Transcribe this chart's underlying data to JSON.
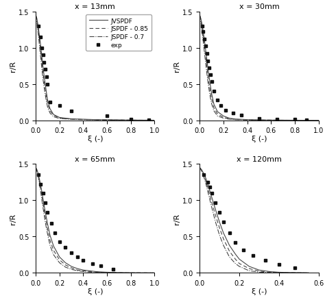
{
  "panels": [
    {
      "title": "x = 13mm",
      "xlim": [
        0,
        1.0
      ],
      "ylim": [
        0,
        1.5
      ]
    },
    {
      "title": "x = 30mm",
      "xlim": [
        0,
        1.0
      ],
      "ylim": [
        0,
        1.5
      ]
    },
    {
      "title": "x = 65mm",
      "xlim": [
        0,
        1.0
      ],
      "ylim": [
        0,
        1.5
      ]
    },
    {
      "title": "x = 120mm",
      "xlim": [
        0,
        0.6
      ],
      "ylim": [
        0,
        1.5
      ]
    }
  ],
  "legend_labels": [
    "JVSPDF",
    "JSPDF - 0.85",
    "JSPDF - 0.7",
    "exp"
  ],
  "line_color": "#444444",
  "marker_color": "#111111",
  "xlabel": "ξ (-)",
  "ylabel": "r/R",
  "curves": {
    "panel0": {
      "jvspdf_xi": [
        0.0,
        0.01,
        0.02,
        0.03,
        0.04,
        0.05,
        0.06,
        0.07,
        0.08,
        0.09,
        0.1,
        0.12,
        0.15,
        0.2,
        0.3,
        0.4,
        0.5,
        0.6,
        0.7,
        0.8,
        0.9,
        1.0
      ],
      "jvspdf_r": [
        1.45,
        1.4,
        1.3,
        1.18,
        1.05,
        0.9,
        0.75,
        0.62,
        0.5,
        0.38,
        0.28,
        0.16,
        0.08,
        0.04,
        0.02,
        0.015,
        0.01,
        0.008,
        0.006,
        0.004,
        0.003,
        0.002
      ],
      "jspdf85_xi": [
        0.0,
        0.01,
        0.02,
        0.03,
        0.04,
        0.05,
        0.06,
        0.07,
        0.08,
        0.09,
        0.1,
        0.12,
        0.15,
        0.2,
        0.3,
        0.4,
        0.5,
        0.6,
        0.7,
        0.8,
        0.9,
        1.0
      ],
      "jspdf85_r": [
        1.45,
        1.38,
        1.25,
        1.12,
        0.97,
        0.82,
        0.67,
        0.54,
        0.42,
        0.32,
        0.23,
        0.13,
        0.07,
        0.03,
        0.018,
        0.012,
        0.008,
        0.006,
        0.005,
        0.003,
        0.002,
        0.001
      ],
      "jspdf7_xi": [
        0.0,
        0.01,
        0.02,
        0.03,
        0.04,
        0.05,
        0.06,
        0.07,
        0.08,
        0.09,
        0.1,
        0.12,
        0.15,
        0.2,
        0.3,
        0.4,
        0.5,
        0.6,
        0.7,
        0.8,
        0.9,
        1.0
      ],
      "jspdf7_r": [
        1.45,
        1.35,
        1.2,
        1.05,
        0.89,
        0.73,
        0.58,
        0.46,
        0.35,
        0.26,
        0.18,
        0.1,
        0.05,
        0.025,
        0.014,
        0.009,
        0.006,
        0.004,
        0.003,
        0.002,
        0.001,
        0.001
      ],
      "exp_xi": [
        0.02,
        0.04,
        0.05,
        0.06,
        0.07,
        0.08,
        0.09,
        0.1,
        0.12,
        0.2,
        0.3,
        0.6,
        0.8,
        0.95
      ],
      "exp_r": [
        1.3,
        1.15,
        1.0,
        0.9,
        0.8,
        0.7,
        0.6,
        0.5,
        0.25,
        0.2,
        0.13,
        0.06,
        0.02,
        0.01
      ]
    },
    "panel1": {
      "jvspdf_xi": [
        0.0,
        0.01,
        0.02,
        0.03,
        0.04,
        0.05,
        0.06,
        0.07,
        0.08,
        0.09,
        0.1,
        0.12,
        0.15,
        0.2,
        0.25,
        0.3,
        0.4,
        0.5,
        0.6,
        0.7,
        0.8,
        0.9,
        1.0
      ],
      "jvspdf_r": [
        1.45,
        1.4,
        1.32,
        1.22,
        1.1,
        0.97,
        0.84,
        0.71,
        0.59,
        0.48,
        0.37,
        0.22,
        0.12,
        0.06,
        0.03,
        0.018,
        0.01,
        0.006,
        0.004,
        0.003,
        0.002,
        0.001,
        0.001
      ],
      "jspdf85_xi": [
        0.0,
        0.01,
        0.02,
        0.03,
        0.04,
        0.05,
        0.06,
        0.07,
        0.08,
        0.09,
        0.1,
        0.12,
        0.15,
        0.2,
        0.25,
        0.3,
        0.4,
        0.5,
        0.6,
        0.7,
        0.8,
        0.9,
        1.0
      ],
      "jspdf85_r": [
        1.45,
        1.38,
        1.27,
        1.15,
        1.02,
        0.88,
        0.74,
        0.61,
        0.49,
        0.39,
        0.3,
        0.17,
        0.09,
        0.04,
        0.022,
        0.013,
        0.007,
        0.004,
        0.003,
        0.002,
        0.001,
        0.001,
        0.001
      ],
      "jspdf7_xi": [
        0.0,
        0.01,
        0.02,
        0.03,
        0.04,
        0.05,
        0.06,
        0.07,
        0.08,
        0.09,
        0.1,
        0.12,
        0.15,
        0.2,
        0.25,
        0.3,
        0.4,
        0.5,
        0.6,
        0.7,
        0.8,
        0.9,
        1.0
      ],
      "jspdf7_r": [
        1.45,
        1.35,
        1.22,
        1.08,
        0.93,
        0.79,
        0.65,
        0.52,
        0.41,
        0.31,
        0.23,
        0.13,
        0.06,
        0.03,
        0.015,
        0.009,
        0.005,
        0.003,
        0.002,
        0.001,
        0.001,
        0.001,
        0.001
      ],
      "exp_xi": [
        0.02,
        0.03,
        0.04,
        0.05,
        0.06,
        0.07,
        0.08,
        0.09,
        0.1,
        0.12,
        0.15,
        0.18,
        0.22,
        0.28,
        0.35,
        0.5,
        0.65,
        0.8,
        0.9
      ],
      "exp_r": [
        1.3,
        1.22,
        1.12,
        1.02,
        0.92,
        0.82,
        0.72,
        0.63,
        0.53,
        0.4,
        0.28,
        0.2,
        0.14,
        0.1,
        0.07,
        0.03,
        0.015,
        0.02,
        0.01
      ]
    },
    "panel2": {
      "jvspdf_xi": [
        0.0,
        0.01,
        0.02,
        0.03,
        0.04,
        0.05,
        0.06,
        0.08,
        0.1,
        0.12,
        0.15,
        0.2,
        0.25,
        0.3,
        0.35,
        0.4,
        0.45,
        0.5,
        0.55,
        0.6,
        0.7,
        0.8,
        0.9,
        1.0
      ],
      "jvspdf_r": [
        1.45,
        1.42,
        1.37,
        1.3,
        1.22,
        1.13,
        1.03,
        0.84,
        0.67,
        0.52,
        0.37,
        0.22,
        0.14,
        0.09,
        0.06,
        0.04,
        0.03,
        0.02,
        0.014,
        0.01,
        0.005,
        0.003,
        0.002,
        0.001
      ],
      "jspdf85_xi": [
        0.0,
        0.01,
        0.02,
        0.03,
        0.04,
        0.05,
        0.06,
        0.08,
        0.1,
        0.12,
        0.15,
        0.2,
        0.25,
        0.3,
        0.35,
        0.4,
        0.45,
        0.5,
        0.55,
        0.6,
        0.7,
        0.8,
        0.9,
        1.0
      ],
      "jspdf85_r": [
        1.45,
        1.41,
        1.35,
        1.27,
        1.18,
        1.08,
        0.97,
        0.77,
        0.6,
        0.45,
        0.31,
        0.18,
        0.11,
        0.07,
        0.04,
        0.03,
        0.02,
        0.013,
        0.009,
        0.006,
        0.003,
        0.002,
        0.001,
        0.001
      ],
      "jspdf7_xi": [
        0.0,
        0.01,
        0.02,
        0.03,
        0.04,
        0.05,
        0.06,
        0.08,
        0.1,
        0.12,
        0.15,
        0.2,
        0.25,
        0.3,
        0.35,
        0.4,
        0.45,
        0.5,
        0.55,
        0.6,
        0.7,
        0.8,
        0.9,
        1.0
      ],
      "jspdf7_r": [
        1.45,
        1.4,
        1.33,
        1.24,
        1.13,
        1.02,
        0.91,
        0.7,
        0.53,
        0.38,
        0.25,
        0.14,
        0.08,
        0.05,
        0.03,
        0.02,
        0.013,
        0.009,
        0.006,
        0.004,
        0.002,
        0.001,
        0.001,
        0.001
      ],
      "exp_xi": [
        0.02,
        0.04,
        0.06,
        0.08,
        0.1,
        0.13,
        0.16,
        0.2,
        0.25,
        0.3,
        0.35,
        0.4,
        0.48,
        0.55,
        0.65
      ],
      "exp_r": [
        1.35,
        1.22,
        1.1,
        0.97,
        0.83,
        0.68,
        0.55,
        0.43,
        0.35,
        0.28,
        0.22,
        0.17,
        0.13,
        0.1,
        0.05
      ]
    },
    "panel3": {
      "jvspdf_xi": [
        0.0,
        0.01,
        0.02,
        0.03,
        0.04,
        0.05,
        0.06,
        0.08,
        0.1,
        0.12,
        0.15,
        0.18,
        0.2,
        0.25,
        0.3,
        0.35,
        0.4,
        0.45,
        0.5,
        0.55
      ],
      "jvspdf_r": [
        1.45,
        1.42,
        1.37,
        1.31,
        1.23,
        1.14,
        1.05,
        0.87,
        0.7,
        0.55,
        0.38,
        0.26,
        0.19,
        0.09,
        0.04,
        0.02,
        0.01,
        0.006,
        0.004,
        0.002
      ],
      "jspdf85_xi": [
        0.0,
        0.01,
        0.02,
        0.03,
        0.04,
        0.05,
        0.06,
        0.08,
        0.1,
        0.12,
        0.15,
        0.18,
        0.2,
        0.25,
        0.3,
        0.35,
        0.4,
        0.45,
        0.5,
        0.55
      ],
      "jspdf85_r": [
        1.45,
        1.41,
        1.35,
        1.27,
        1.18,
        1.08,
        0.98,
        0.79,
        0.62,
        0.47,
        0.3,
        0.19,
        0.13,
        0.06,
        0.025,
        0.011,
        0.005,
        0.003,
        0.002,
        0.001
      ],
      "jspdf7_xi": [
        0.0,
        0.01,
        0.02,
        0.03,
        0.04,
        0.05,
        0.06,
        0.08,
        0.1,
        0.12,
        0.15,
        0.18,
        0.2,
        0.25,
        0.3,
        0.35,
        0.4,
        0.45,
        0.5,
        0.55
      ],
      "jspdf7_r": [
        1.45,
        1.4,
        1.33,
        1.24,
        1.13,
        1.02,
        0.91,
        0.7,
        0.52,
        0.38,
        0.22,
        0.13,
        0.09,
        0.03,
        0.012,
        0.005,
        0.002,
        0.001,
        0.001,
        0.001
      ],
      "exp_xi": [
        0.02,
        0.04,
        0.05,
        0.06,
        0.08,
        0.1,
        0.12,
        0.15,
        0.18,
        0.22,
        0.27,
        0.33,
        0.4,
        0.48
      ],
      "exp_r": [
        1.35,
        1.25,
        1.18,
        1.1,
        0.97,
        0.83,
        0.7,
        0.55,
        0.42,
        0.32,
        0.24,
        0.17,
        0.12,
        0.07
      ]
    }
  },
  "xticks_01": [
    0,
    0.2,
    0.4,
    0.6,
    0.8,
    1.0
  ],
  "xticks_06": [
    0,
    0.2,
    0.4,
    0.6
  ],
  "yticks": [
    0,
    0.5,
    1.0,
    1.5
  ]
}
